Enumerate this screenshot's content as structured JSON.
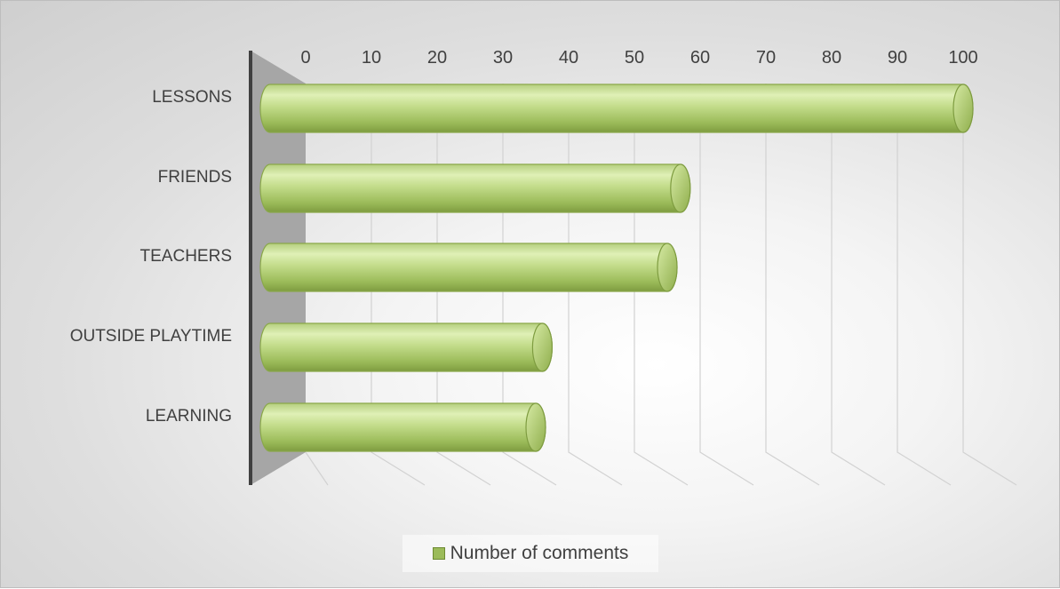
{
  "chart_data": {
    "type": "bar",
    "orientation": "horizontal",
    "style": "3d-cylinder",
    "categories": [
      "LESSONS",
      "FRIENDS",
      "TEACHERS",
      "OUTSIDE PLAYTIME",
      "LEARNING"
    ],
    "series": [
      {
        "name": "Number of comments",
        "values": [
          100,
          57,
          55,
          36,
          35
        ],
        "color": "#9bbb59"
      }
    ],
    "x_ticks": [
      0,
      10,
      20,
      30,
      40,
      50,
      60,
      70,
      80,
      90,
      100
    ],
    "xlim": [
      0,
      100
    ],
    "grid": true,
    "legend_position": "bottom"
  },
  "legend": {
    "label": "Number of comments",
    "color": "#9bbb59"
  }
}
